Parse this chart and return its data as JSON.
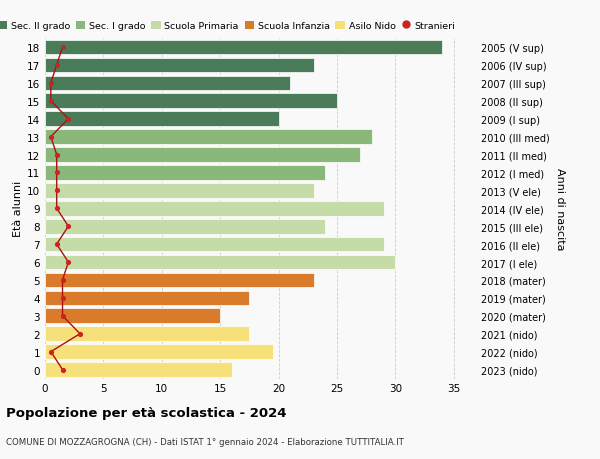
{
  "ages": [
    18,
    17,
    16,
    15,
    14,
    13,
    12,
    11,
    10,
    9,
    8,
    7,
    6,
    5,
    4,
    3,
    2,
    1,
    0
  ],
  "bar_values": [
    34,
    23,
    21,
    25,
    20,
    28,
    27,
    24,
    23,
    29,
    24,
    29,
    30,
    23,
    17.5,
    15,
    17.5,
    19.5,
    16
  ],
  "bar_colors": [
    "#4a7c59",
    "#4a7c59",
    "#4a7c59",
    "#4a7c59",
    "#4a7c59",
    "#8ab87a",
    "#8ab87a",
    "#8ab87a",
    "#c5dba8",
    "#c5dba8",
    "#c5dba8",
    "#c5dba8",
    "#c5dba8",
    "#d97b2a",
    "#d97b2a",
    "#d97b2a",
    "#f5e07a",
    "#f5e07a",
    "#f5e07a"
  ],
  "stranieri_values": [
    1.5,
    1.0,
    0.5,
    0.5,
    2.0,
    0.5,
    1.0,
    1.0,
    1.0,
    1.0,
    2.0,
    1.0,
    2.0,
    1.5,
    1.5,
    1.5,
    3.0,
    0.5,
    1.5
  ],
  "right_labels": [
    "2005 (V sup)",
    "2006 (IV sup)",
    "2007 (III sup)",
    "2008 (II sup)",
    "2009 (I sup)",
    "2010 (III med)",
    "2011 (II med)",
    "2012 (I med)",
    "2013 (V ele)",
    "2014 (IV ele)",
    "2015 (III ele)",
    "2016 (II ele)",
    "2017 (I ele)",
    "2018 (mater)",
    "2019 (mater)",
    "2020 (mater)",
    "2021 (nido)",
    "2022 (nido)",
    "2023 (nido)"
  ],
  "legend_labels": [
    "Sec. II grado",
    "Sec. I grado",
    "Scuola Primaria",
    "Scuola Infanzia",
    "Asilo Nido",
    "Stranieri"
  ],
  "legend_colors": [
    "#4a7c59",
    "#8ab87a",
    "#c5dba8",
    "#d97b2a",
    "#f5e07a",
    "#cc2222"
  ],
  "title": "Popolazione per età scolastica - 2024",
  "subtitle": "COMUNE DI MOZZAGROGNA (CH) - Dati ISTAT 1° gennaio 2024 - Elaborazione TUTTITALIA.IT",
  "ylabel_left": "Età alunni",
  "ylabel_right": "Anni di nascita",
  "xlim": [
    0,
    37
  ],
  "ylim": [
    -0.5,
    18.5
  ],
  "background_color": "#f9f9f9",
  "grid_color": "#cccccc",
  "bar_height": 0.82
}
